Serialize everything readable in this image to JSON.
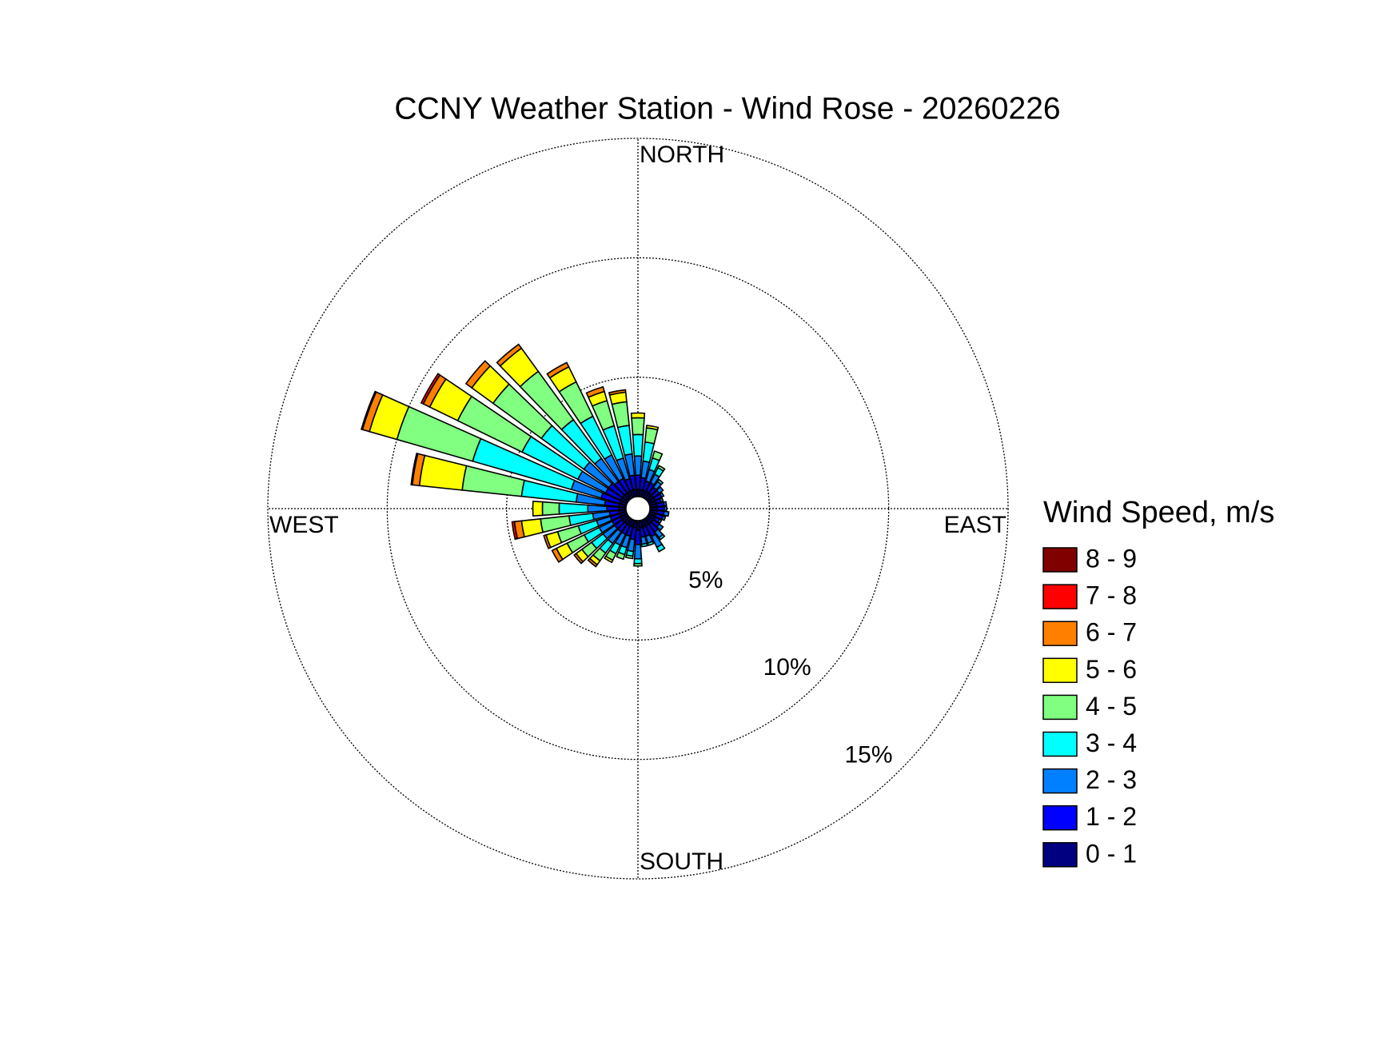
{
  "chart_data": {
    "type": "windrose",
    "title": "CCNY Weather Station - Wind Rose - 20260226",
    "legend_title": "Wind Speed, m/s",
    "x": [
      0,
      10,
      20,
      30,
      40,
      50,
      60,
      70,
      80,
      90,
      100,
      110,
      120,
      130,
      140,
      150,
      160,
      170,
      180,
      190,
      200,
      210,
      220,
      230,
      240,
      250,
      260,
      270,
      280,
      290,
      300,
      310,
      320,
      330,
      340,
      350
    ],
    "xticks": [
      {
        "value": 0,
        "label": "NORTH"
      },
      {
        "value": 90,
        "label": "EAST"
      },
      {
        "value": 180,
        "label": "SOUTH"
      },
      {
        "value": 270,
        "label": "WEST"
      }
    ],
    "rlim": [
      0,
      15
    ],
    "rticks": [
      {
        "value": 5,
        "label": "5%"
      },
      {
        "value": 10,
        "label": "10%"
      },
      {
        "value": 15,
        "label": "15%"
      }
    ],
    "grid": true,
    "series": [
      {
        "name": "0 - 1",
        "color": "#000080",
        "values": [
          0.3,
          0.3,
          0.3,
          0.3,
          0.3,
          0.3,
          0.3,
          0.3,
          0.3,
          0.3,
          0.3,
          0.3,
          0.3,
          0.3,
          0.3,
          0.3,
          0.3,
          0.3,
          0.4,
          0.3,
          0.3,
          0.3,
          0.3,
          0.3,
          0.3,
          0.3,
          0.3,
          0.3,
          0.3,
          0.3,
          0.3,
          0.3,
          0.3,
          0.3,
          0.3,
          0.3
        ]
      },
      {
        "name": "1 - 2",
        "color": "#0000ff",
        "values": [
          0.6,
          0.5,
          0.4,
          0.4,
          0.3,
          0.3,
          0.3,
          0.2,
          0.3,
          0.3,
          0.3,
          0.3,
          0.2,
          0.3,
          0.4,
          0.5,
          0.4,
          0.4,
          0.6,
          0.5,
          0.4,
          0.4,
          0.4,
          0.4,
          0.4,
          0.4,
          0.4,
          0.5,
          0.6,
          0.8,
          0.7,
          0.7,
          0.6,
          0.6,
          0.5,
          0.6
        ]
      },
      {
        "name": "2 - 3",
        "color": "#0080ff",
        "values": [
          0.8,
          0.7,
          0.5,
          0.4,
          0.3,
          0.2,
          0.1,
          0.1,
          0.1,
          0.1,
          0.2,
          0.1,
          0.1,
          0.2,
          0.3,
          0.5,
          0.3,
          0.3,
          0.6,
          0.5,
          0.5,
          0.5,
          0.6,
          0.6,
          0.6,
          0.6,
          0.7,
          0.8,
          1.2,
          1.3,
          1.3,
          1.3,
          1.2,
          1.1,
          0.9,
          0.9
        ]
      },
      {
        "name": "3 - 4",
        "color": "#00ffff",
        "values": [
          0.9,
          0.8,
          0.5,
          0.3,
          0.1,
          0,
          0,
          0,
          0,
          0,
          0,
          0,
          0,
          0,
          0.1,
          0.2,
          0.1,
          0.1,
          0.2,
          0.2,
          0.3,
          0.4,
          0.5,
          0.6,
          0.7,
          0.8,
          1.0,
          1.2,
          2.3,
          4.3,
          2.6,
          2.2,
          2.0,
          1.8,
          1.4,
          1.2
        ]
      },
      {
        "name": "4 - 5",
        "color": "#80ff80",
        "values": [
          0.7,
          0.6,
          0.3,
          0.1,
          0,
          0,
          0,
          0,
          0,
          0,
          0,
          0,
          0,
          0,
          0,
          0,
          0,
          0,
          0.1,
          0.1,
          0.2,
          0.3,
          0.4,
          0.5,
          0.8,
          0.9,
          1.2,
          0.7,
          2.5,
          3.3,
          3.0,
          2.5,
          2.5,
          1.6,
          1.1,
          1.0
        ]
      },
      {
        "name": "5 - 6",
        "color": "#ffff00",
        "values": [
          0.2,
          0.1,
          0,
          0,
          0,
          0,
          0,
          0,
          0,
          0,
          0,
          0,
          0,
          0,
          0,
          0,
          0,
          0,
          0,
          0,
          0,
          0.1,
          0.2,
          0.3,
          0.5,
          0.5,
          0.8,
          0.4,
          1.8,
          1.2,
          1.3,
          1.1,
          1.2,
          0.7,
          0.4,
          0.4
        ]
      },
      {
        "name": "6 - 7",
        "color": "#ff8000",
        "values": [
          0,
          0,
          0,
          0,
          0,
          0,
          0,
          0,
          0,
          0,
          0,
          0,
          0,
          0,
          0,
          0,
          0,
          0,
          0,
          0,
          0,
          0,
          0.1,
          0.1,
          0.2,
          0.1,
          0.3,
          0,
          0.3,
          0.3,
          0.3,
          0.3,
          0.2,
          0.2,
          0.2,
          0.1
        ]
      },
      {
        "name": "7 - 8",
        "color": "#ff0000",
        "values": [
          0,
          0,
          0,
          0,
          0,
          0,
          0,
          0,
          0,
          0,
          0,
          0,
          0,
          0,
          0,
          0,
          0,
          0,
          0,
          0,
          0,
          0,
          0,
          0,
          0,
          0,
          0.1,
          0,
          0.05,
          0.05,
          0.1,
          0,
          0,
          0,
          0,
          0
        ]
      },
      {
        "name": "8 - 9",
        "color": "#800000",
        "values": [
          0,
          0,
          0,
          0,
          0,
          0,
          0,
          0,
          0,
          0,
          0,
          0,
          0,
          0,
          0,
          0,
          0,
          0,
          0,
          0,
          0,
          0,
          0,
          0,
          0,
          0,
          0,
          0,
          0,
          0,
          0,
          0,
          0,
          0,
          0,
          0
        ]
      }
    ]
  }
}
